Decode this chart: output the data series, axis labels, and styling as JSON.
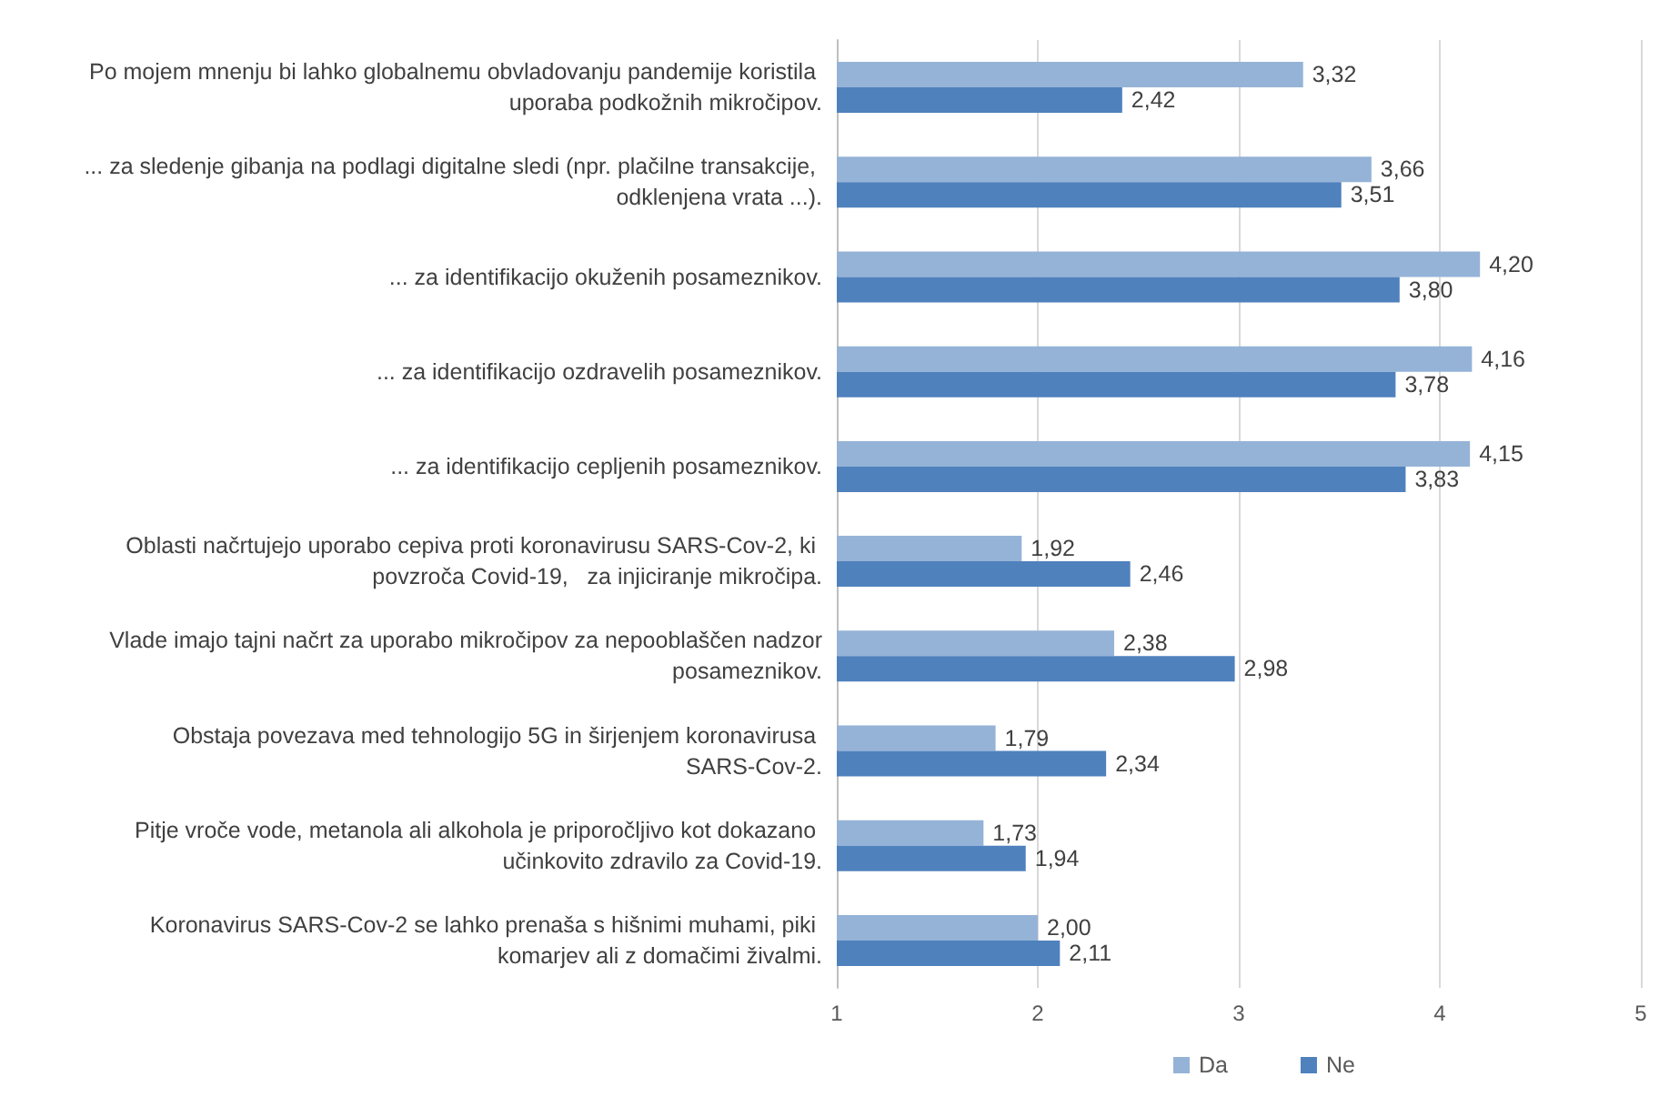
{
  "chart_data": {
    "type": "bar",
    "orientation": "horizontal",
    "categories": [
      "Po mojem mnenju bi lahko globalnemu obvladovanju pandemije koristila uporaba podkožnih mikročipov.",
      "... za sledenje gibanja na podlagi digitalne sledi (npr. plačilne transakcije, odklenjena vrata ...).",
      "... za identifikacijo okuženih posameznikov.",
      "... za identifikacijo ozdravelih posameznikov.",
      "... za identifikacijo cepljenih posameznikov.",
      "Oblasti načrtujejo uporabo cepiva proti koronavirusu SARS-Cov-2, ki povzroča Covid-19,   za injiciranje mikročipa.",
      "Vlade imajo tajni načrt za uporabo mikročipov za nepooblaščen nadzor posameznikov.",
      "Obstaja povezava med tehnologijo 5G in širjenjem koronavirusa SARS-Cov-2.",
      "Pitje vroče vode, metanola ali alkohola je priporočljivo kot dokazano učinkovito zdravilo za Covid-19.",
      "Koronavirus SARS-Cov-2 se lahko prenaša s hišnimi muhami, piki komarjev ali z domačimi živalmi."
    ],
    "series": [
      {
        "name": "Da",
        "color": "#95b3d7",
        "values": [
          3.32,
          3.66,
          4.2,
          4.16,
          4.15,
          1.92,
          2.38,
          1.79,
          1.73,
          2.0
        ],
        "value_labels": [
          "3,32",
          "3,66",
          "4,20",
          "4,16",
          "4,15",
          "1,92",
          "2,38",
          "1,79",
          "1,73",
          "2,00"
        ]
      },
      {
        "name": "Ne",
        "color": "#4f81bd",
        "values": [
          2.42,
          3.51,
          3.8,
          3.78,
          3.83,
          2.46,
          2.98,
          2.34,
          1.94,
          2.11
        ],
        "value_labels": [
          "2,42",
          "3,51",
          "3,80",
          "3,78",
          "3,83",
          "2,46",
          "2,98",
          "2,34",
          "1,94",
          "2,11"
        ]
      }
    ],
    "xlim": [
      1,
      5
    ],
    "xticks": [
      1,
      2,
      3,
      4,
      5
    ],
    "grid": "x",
    "legend": "bottom"
  }
}
